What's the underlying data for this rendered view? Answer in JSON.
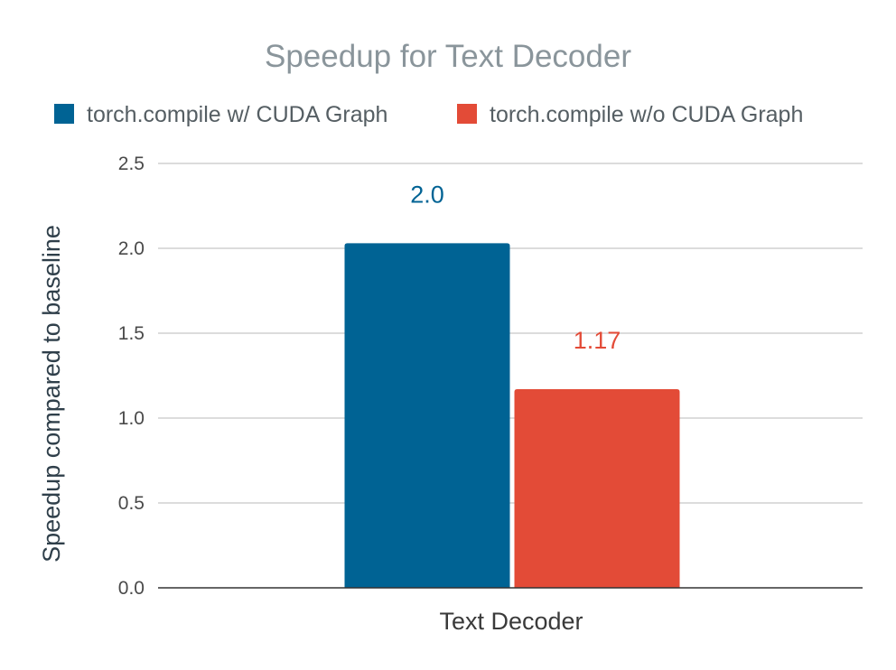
{
  "chart_data": {
    "type": "bar",
    "title": "Speedup for Text Decoder",
    "xlabel": "",
    "ylabel": "Speedup compared to baseline",
    "categories": [
      "Text Decoder"
    ],
    "series": [
      {
        "name": "torch.compile w/ CUDA Graph",
        "values": [
          2.03
        ],
        "data_labels": [
          "2.0"
        ],
        "color": "#006394"
      },
      {
        "name": "torch.compile w/o CUDA Graph",
        "values": [
          1.17
        ],
        "data_labels": [
          "1.17"
        ],
        "color": "#e34b37"
      }
    ],
    "ylim": [
      0,
      2.5
    ],
    "yticks": [
      "0.0",
      "0.5",
      "1.0",
      "1.5",
      "2.0",
      "2.5"
    ],
    "grid": true,
    "legend_position": "top"
  }
}
